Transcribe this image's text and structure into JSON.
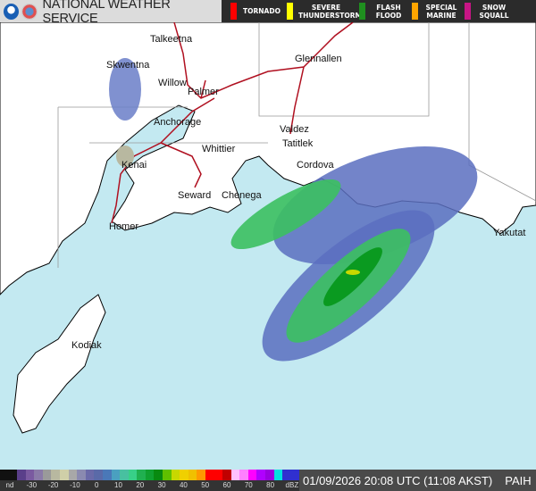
{
  "header": {
    "title": "NATIONAL WEATHER SERVICE",
    "warnings": [
      {
        "label": "TORNADO",
        "color": "#ff0000"
      },
      {
        "label": "SEVERE THUNDERSTORM",
        "color": "#ffff00"
      },
      {
        "label": "FLASH FLOOD",
        "color": "#1f8f1f"
      },
      {
        "label": "SPECIAL MARINE",
        "color": "#ffa500"
      },
      {
        "label": "SNOW SQUALL",
        "color": "#c71585"
      }
    ]
  },
  "map": {
    "ocean_color": "#c3e9f1",
    "land_color": "#ffffff",
    "road_color": "#b01020",
    "cities": [
      "Talkeetna",
      "Skwentna",
      "Willow",
      "Glennallen",
      "Palmer",
      "Anchorage",
      "Valdez",
      "Tatitlek",
      "Whittier",
      "Kenai",
      "Cordova",
      "Seward",
      "Chenega",
      "Homer",
      "Yakutat",
      "Kodiak"
    ]
  },
  "legend": {
    "colors": [
      "#111111",
      "#111111",
      "#5a3f8a",
      "#7a5aa0",
      "#8a7aa8",
      "#9a9a9a",
      "#b8b8a0",
      "#cfcfa8",
      "#a8a8a8",
      "#8a8ab0",
      "#6a6aa8",
      "#5a6aa8",
      "#4a78b8",
      "#4aa0c0",
      "#48c0a0",
      "#38d088",
      "#20b050",
      "#10a030",
      "#088a10",
      "#60c000",
      "#c8d800",
      "#f0d000",
      "#f0c000",
      "#ff9900",
      "#ff0000",
      "#ff0000",
      "#c00000",
      "#ffc0ff",
      "#ff80ff",
      "#ff00ff",
      "#b000ff",
      "#9a00e0",
      "#00e0e0",
      "#3030d0",
      "#3030d0"
    ],
    "labels": [
      "nd",
      "-30",
      "-20",
      "-10",
      "0",
      "10",
      "20",
      "30",
      "40",
      "50",
      "60",
      "70",
      "80",
      "dBZ"
    ]
  },
  "status": {
    "timestamp": "01/09/2026 20:08 UTC (11:08 AKST)",
    "station": "PAIH"
  }
}
